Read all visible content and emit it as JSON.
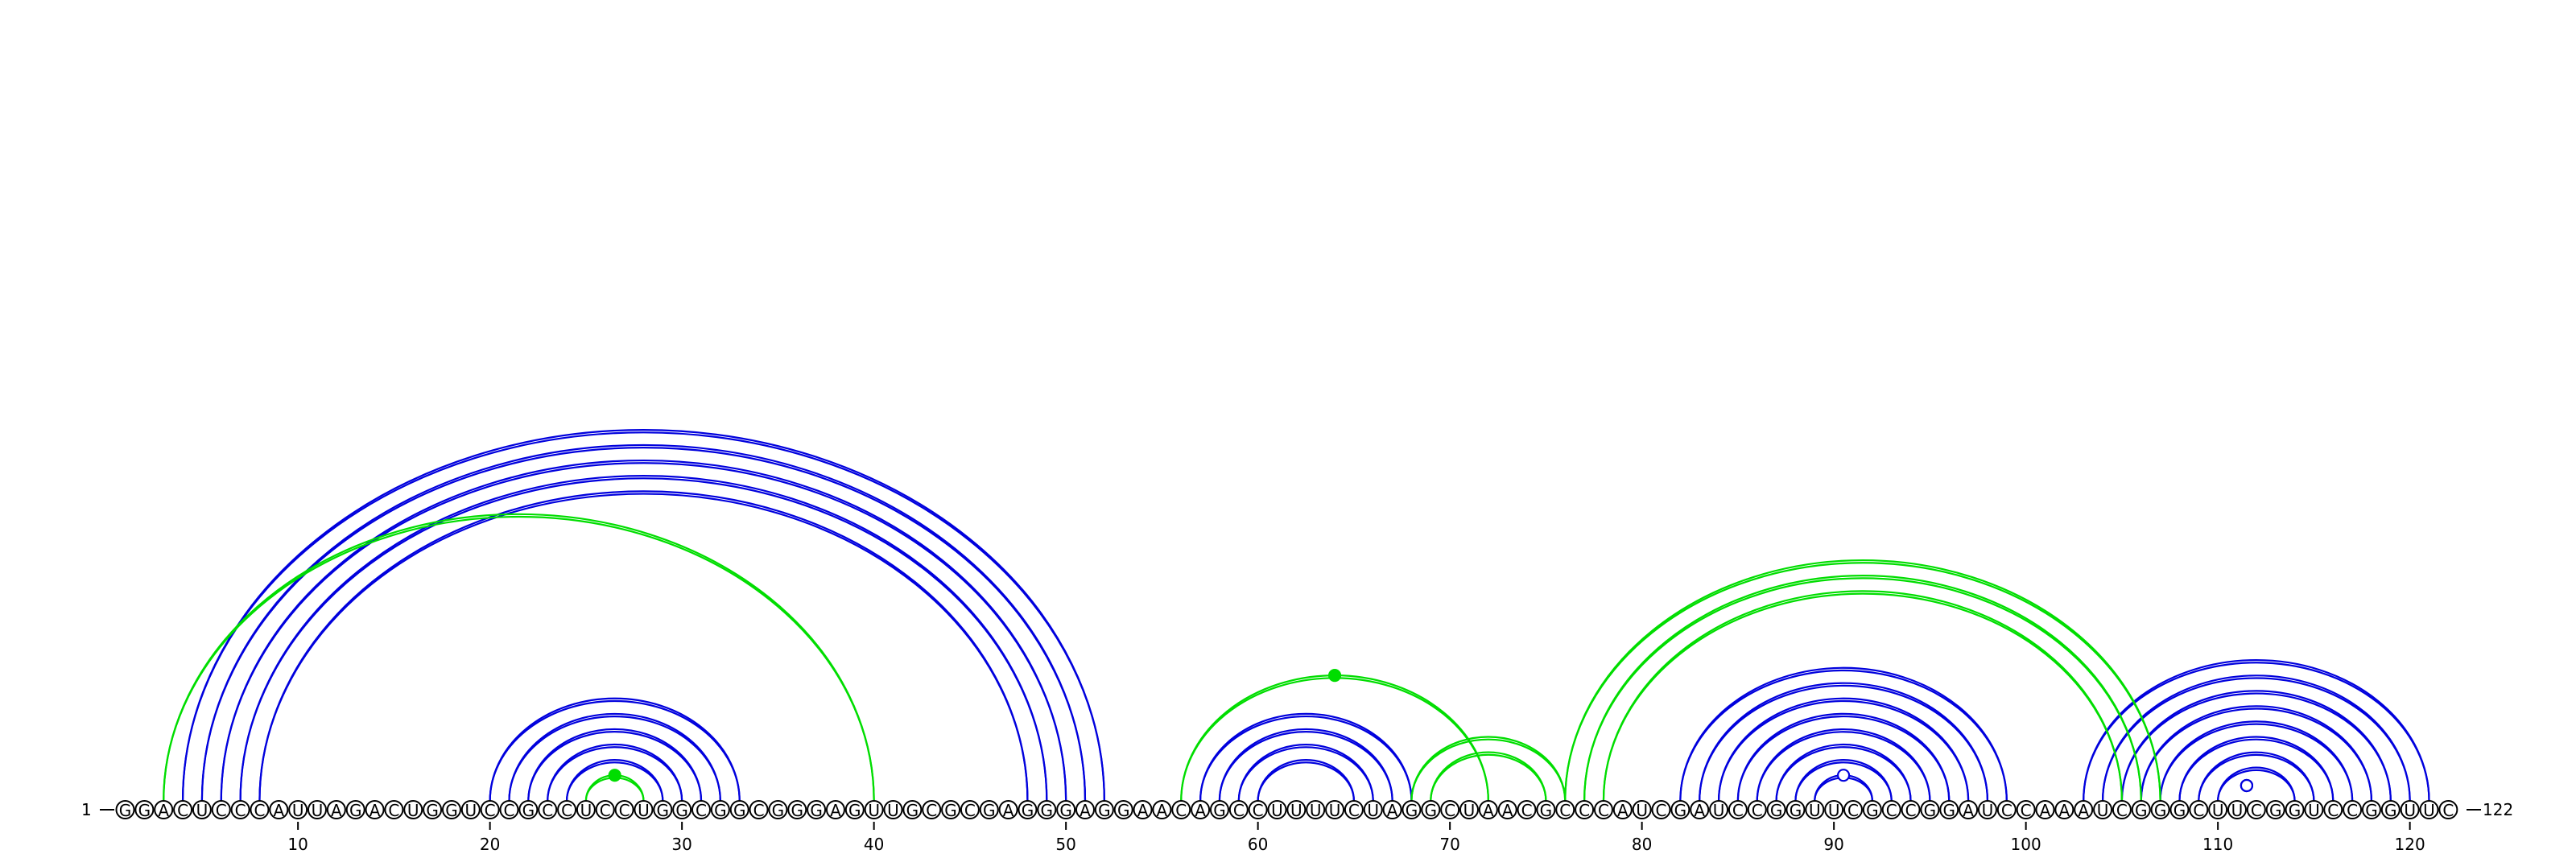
{
  "chart_data": {
    "type": "arc-diagram",
    "sequence": "GGACUCCCAUUAGACUGGUCCGCCUCCUGGCGGCGGGAGUUGCGCGAGGGAGGAACAGCCUUUUCUAGGCUAACGCCCAUCGAUCCGGUUCGCCGGAUCCAAAUCGGGCUUCGGUCCGGUUC",
    "start_label": "1",
    "end_label": "122",
    "ticks": [
      10,
      20,
      30,
      40,
      50,
      60,
      70,
      80,
      90,
      100,
      110,
      120
    ],
    "colors": {
      "blue": "#0000dd",
      "green": "#00dd00"
    },
    "series": [
      {
        "color": "blue",
        "pairs": [
          [
            4,
            52
          ],
          [
            5,
            51
          ],
          [
            6,
            50
          ],
          [
            7,
            49
          ],
          [
            8,
            48
          ],
          [
            20,
            33
          ],
          [
            21,
            32
          ],
          [
            22,
            31
          ],
          [
            23,
            30
          ],
          [
            24,
            29
          ],
          [
            57,
            68
          ],
          [
            58,
            67
          ],
          [
            59,
            66
          ],
          [
            60,
            65
          ],
          [
            82,
            99
          ],
          [
            83,
            98
          ],
          [
            84,
            97
          ],
          [
            85,
            96
          ],
          [
            86,
            95
          ],
          [
            87,
            94
          ],
          [
            88,
            93
          ],
          [
            89,
            92
          ],
          [
            103,
            121
          ],
          [
            104,
            120
          ],
          [
            105,
            119
          ],
          [
            106,
            118
          ],
          [
            107,
            117
          ],
          [
            108,
            116
          ],
          [
            109,
            115
          ],
          [
            110,
            114
          ]
        ]
      },
      {
        "color": "green",
        "pairs": [
          [
            3,
            40
          ],
          [
            25,
            28
          ],
          [
            56,
            72
          ],
          [
            68,
            76
          ],
          [
            69,
            75
          ],
          [
            76,
            107
          ],
          [
            77,
            106
          ],
          [
            78,
            105
          ]
        ]
      }
    ],
    "hairpin_markers": [
      {
        "position": 26.5,
        "color": "green",
        "filled": true
      },
      {
        "position": 64,
        "color": "green",
        "filled": true
      },
      {
        "position": 90.5,
        "color": "blue",
        "filled": false
      },
      {
        "position": 111.5,
        "color": "blue",
        "filled": false
      },
      {
        "position": 111.5,
        "color": "blue",
        "filled": false
      },
      {
        "position": 111.5,
        "color": "blue",
        "filled": false
      }
    ]
  }
}
